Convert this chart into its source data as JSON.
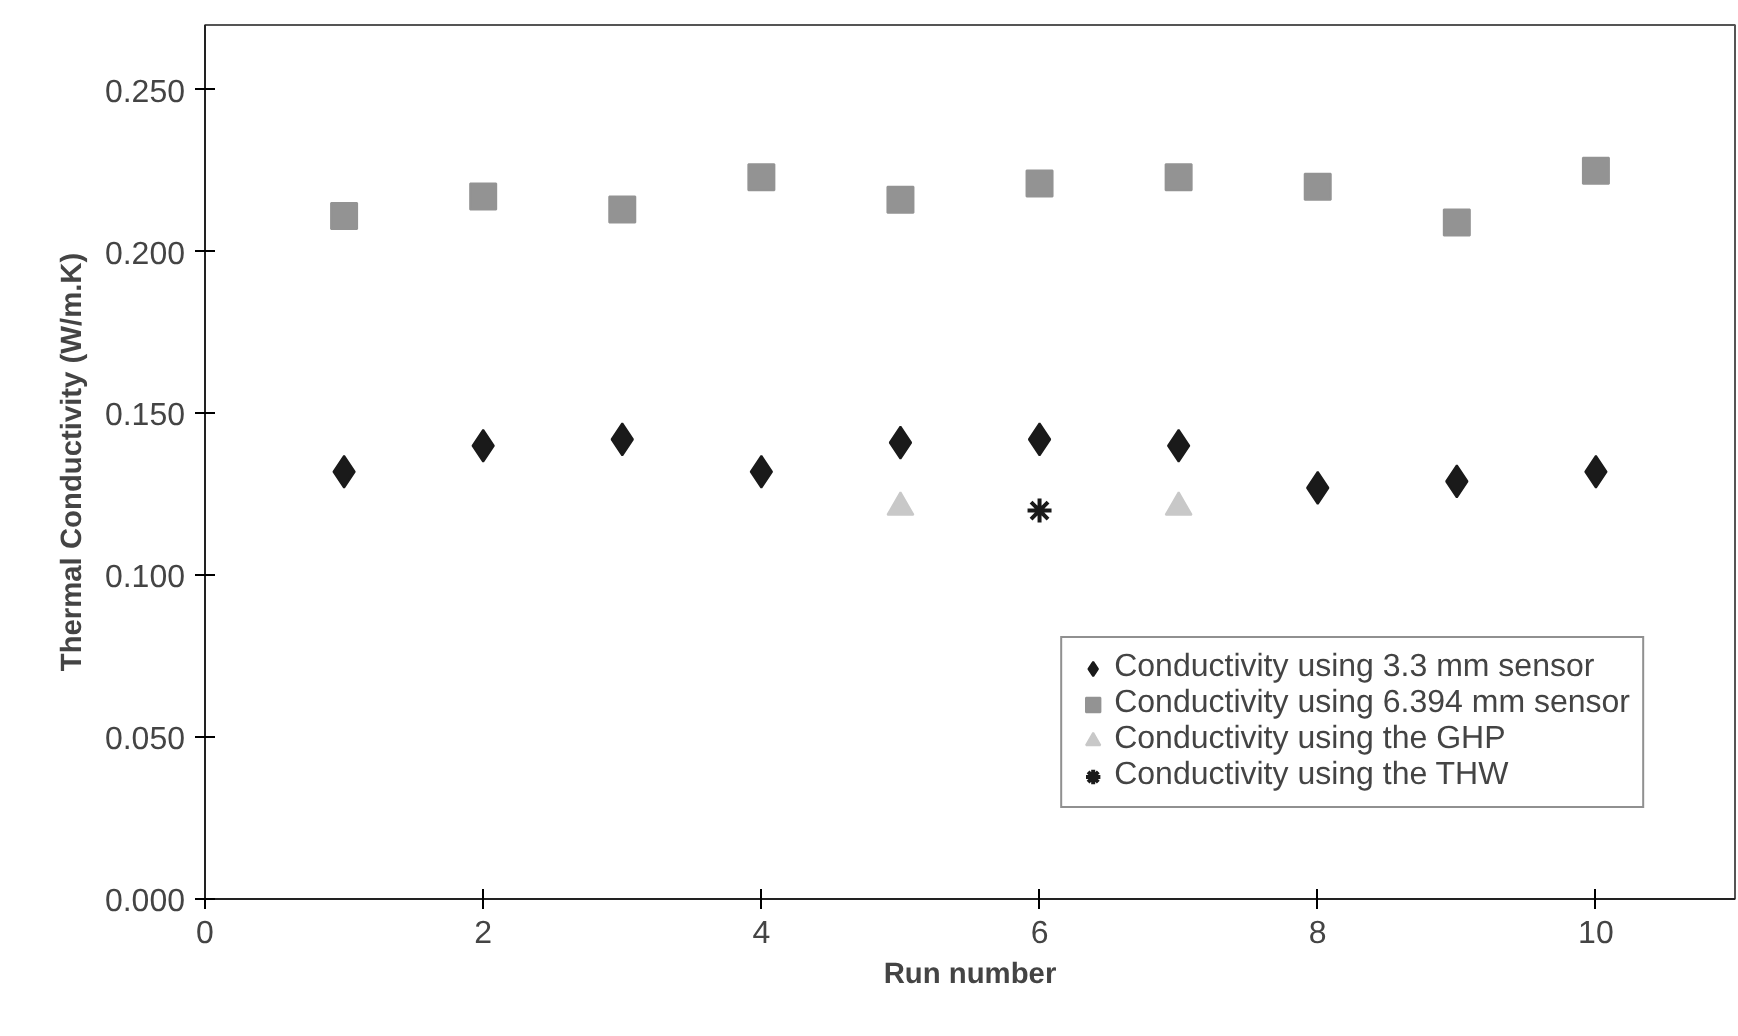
{
  "chart_data": {
    "type": "scatter",
    "xlabel": "Run number",
    "ylabel": "Thermal Conductivity (W/m.K)",
    "xlim": [
      0,
      11
    ],
    "xticks": [
      0,
      2,
      4,
      6,
      8,
      10
    ],
    "ylim": [
      0,
      0.27
    ],
    "yticks": [
      {
        "value": 0,
        "label": "0.000"
      },
      {
        "value": 0.05,
        "label": "0.050"
      },
      {
        "value": 0.1,
        "label": "0.100"
      },
      {
        "value": 0.15,
        "label": "0.150"
      },
      {
        "value": 0.2,
        "label": "0.200"
      },
      {
        "value": 0.25,
        "label": "0.250"
      }
    ],
    "grid": false,
    "legend": "bottom right",
    "series": [
      {
        "name": "Conductivity using 3.3 mm sensor",
        "color": "#1a1a1a",
        "marker": "diamond",
        "x": [
          1,
          2,
          3,
          4,
          5,
          6,
          7,
          8,
          9,
          10
        ],
        "values": [
          0.132,
          0.14,
          0.142,
          0.132,
          0.141,
          0.142,
          0.14,
          0.127,
          0.129,
          0.132
        ]
      },
      {
        "name": "Conductivity using 6.394 mm sensor",
        "color": "#939393",
        "marker": "square",
        "x": [
          1,
          2,
          3,
          4,
          5,
          6,
          7,
          8,
          9,
          10
        ],
        "values": [
          0.211,
          0.217,
          0.213,
          0.223,
          0.216,
          0.221,
          0.223,
          0.22,
          0.209,
          0.225
        ]
      },
      {
        "name": "Conductivity using the GHP",
        "color": "#c8c8c8",
        "marker": "triangle",
        "x": [
          5,
          7
        ],
        "values": [
          0.121,
          0.121
        ]
      },
      {
        "name": "Conductivity using the THW",
        "color": "#1a1a1a",
        "marker": "cross",
        "x": [
          6
        ],
        "values": [
          0.12
        ]
      }
    ]
  }
}
